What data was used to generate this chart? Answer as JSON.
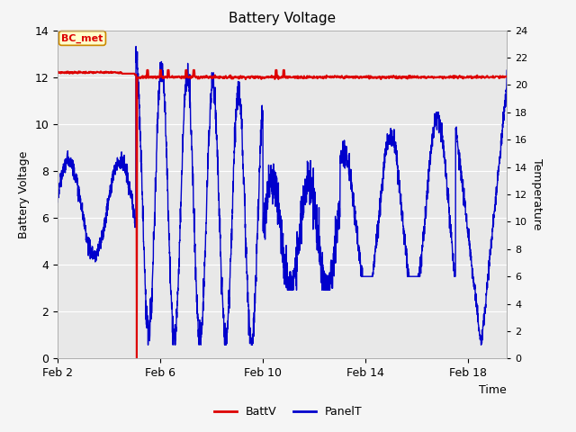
{
  "title": "Battery Voltage",
  "xlabel": "Time",
  "ylabel_left": "Battery Voltage",
  "ylabel_right": "Temperature",
  "legend_label1": "BattV",
  "legend_label2": "PanelT",
  "annotation": "BC_met",
  "xlim_days": [
    2,
    19.5
  ],
  "ylim_left": [
    0,
    14
  ],
  "ylim_right": [
    0,
    24
  ],
  "yticks_left": [
    0,
    2,
    4,
    6,
    8,
    10,
    12,
    14
  ],
  "yticks_right": [
    0,
    2,
    4,
    6,
    8,
    10,
    12,
    14,
    16,
    18,
    20,
    22,
    24
  ],
  "xtick_labels": [
    "Feb 2",
    "Feb 6",
    "Feb 10",
    "Feb 14",
    "Feb 18"
  ],
  "xtick_positions": [
    2,
    6,
    10,
    14,
    18
  ],
  "background_color": "#f5f5f5",
  "inner_bg_color": "#e8e8e8",
  "grid_color": "#ffffff",
  "batt_color": "#dd0000",
  "panel_color": "#0000cc",
  "annotation_bg": "#ffffcc",
  "annotation_border": "#cc8800",
  "temp_scale": 0.5833,
  "batt_voltage": 12.1,
  "figsize": [
    6.4,
    4.8
  ],
  "dpi": 100
}
